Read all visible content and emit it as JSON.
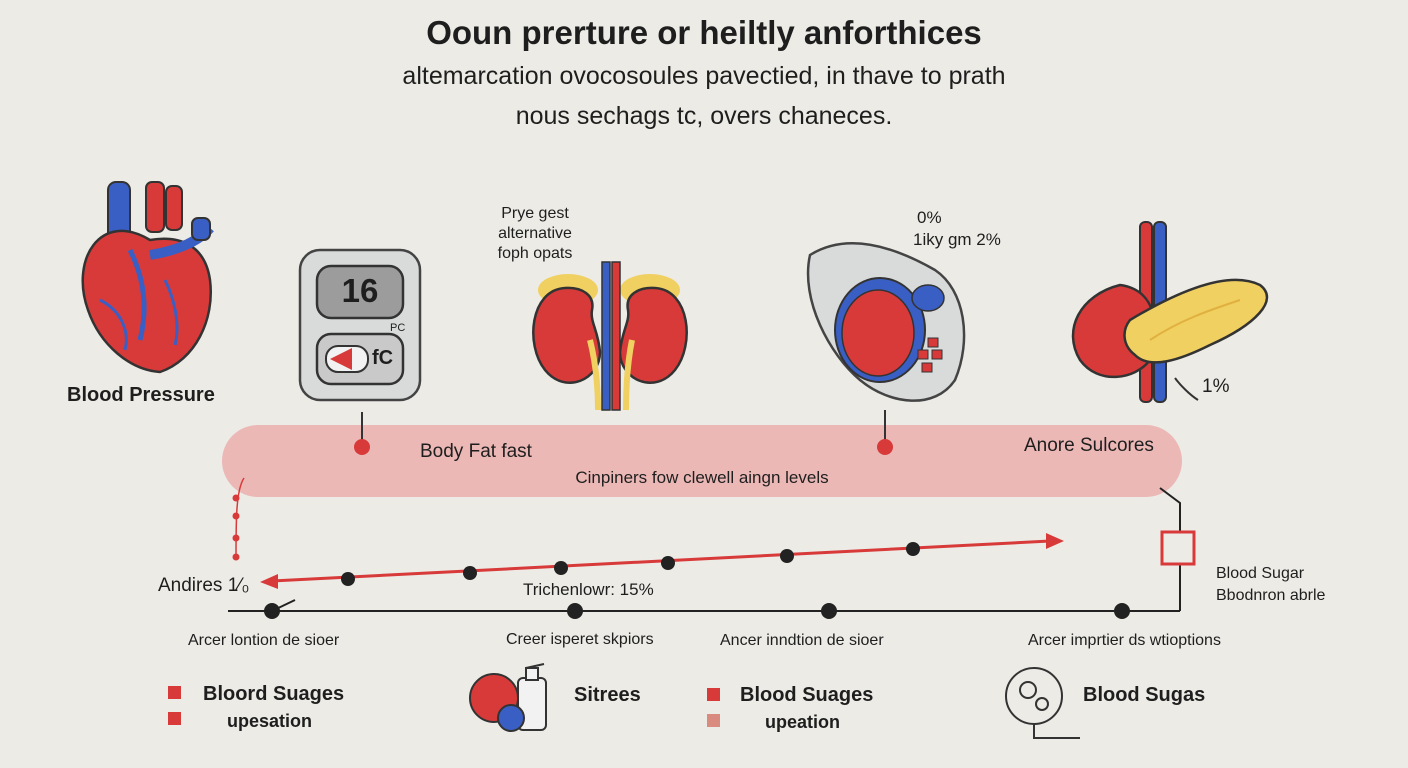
{
  "header": {
    "title": "Ooun prerture or heiltly anforthices",
    "subtitle_line1": "altemarcation ovocosoules pavectied, in thave to prath",
    "subtitle_line2": "nous sechags tc, overs chaneces."
  },
  "organs": {
    "heart_label": "Blood Pressure",
    "monitor_value": "16",
    "monitor_unit": "PC",
    "monitor_small": "fC",
    "kidney_note_1": "Prye gest",
    "kidney_note_2": "alternative",
    "kidney_note_3": "foph opats",
    "stomach_note_1": "0%",
    "stomach_note_2": "1iky gm 2%",
    "pancreas_note": "1%"
  },
  "band": {
    "left_label": "Body Fat fast",
    "right_label": "Anore Sulcores",
    "center_label": "Cinpiners fow clewell aingn levels"
  },
  "timeline": {
    "left_label": "Andires 1⁄₀",
    "mid_label": "Trichenlowr: 15%",
    "right_label_1": "Blood Sugar",
    "right_label_2": "Bbodnron abrle",
    "ticks": [
      "Arcer lontion de sioer",
      "Creer isperet skpiors",
      "Ancer inndtion de sioer",
      "Arcer imprtier ds wtioptions"
    ]
  },
  "legend": {
    "item1_line1": "Bloord Suages",
    "item1_line2": "upesation",
    "item2": "Sitrees",
    "item3_line1": "Blood Suages",
    "item3_line2": "upeation",
    "item4": "Blood Sugas"
  },
  "colors": {
    "red": "#d83a3a",
    "blue": "#3a5fc4",
    "band": "#ebb8b6",
    "yellow": "#f0d060"
  }
}
